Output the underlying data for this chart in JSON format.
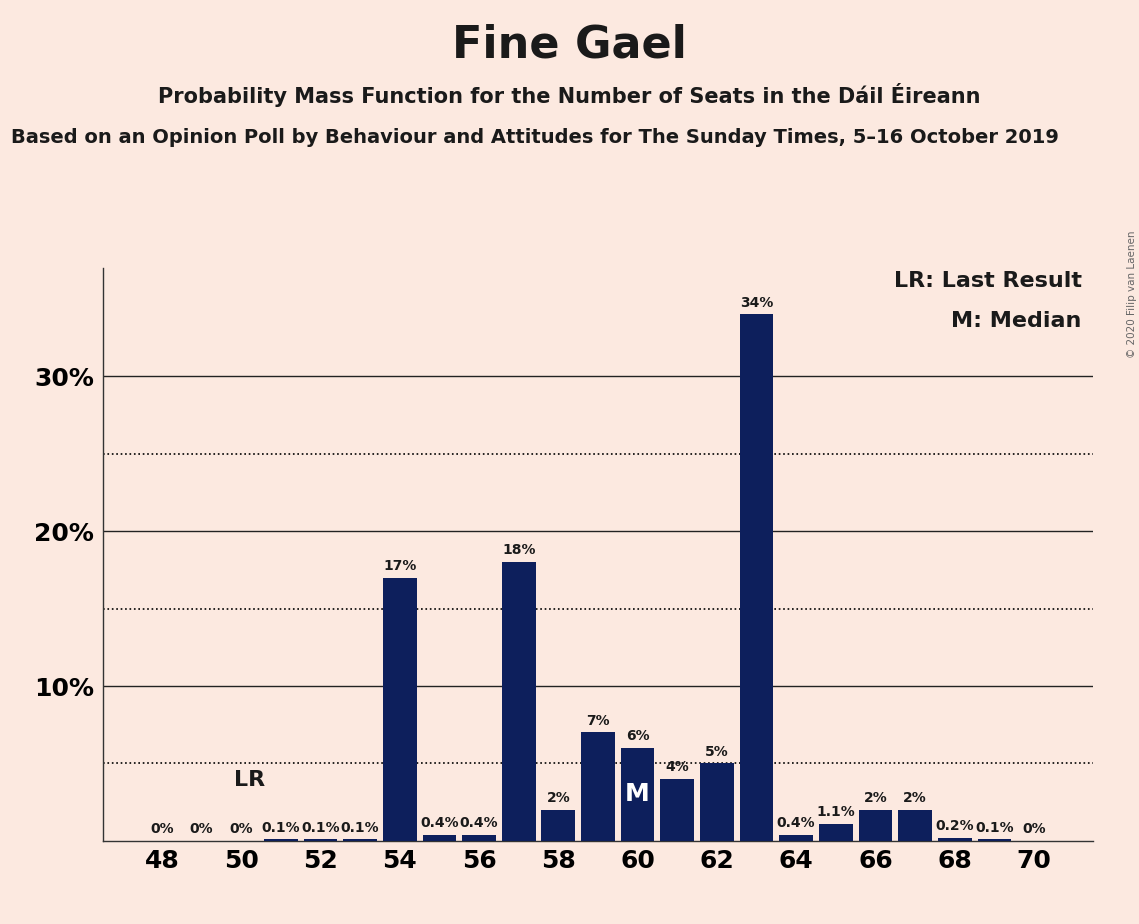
{
  "title": "Fine Gael",
  "subtitle": "Probability Mass Function for the Number of Seats in the Dáil Éireann",
  "subtitle2": "Based on an Opinion Poll by Behaviour and Attitudes for The Sunday Times, 5–16 October 2019",
  "copyright": "© 2020 Filip van Laenen",
  "background_color": "#fce9e0",
  "bar_color": "#0d1f5c",
  "seats": [
    48,
    49,
    50,
    51,
    52,
    53,
    54,
    55,
    56,
    57,
    58,
    59,
    60,
    61,
    62,
    63,
    64,
    65,
    66,
    67,
    68,
    69,
    70
  ],
  "values": [
    0.0,
    0.0,
    0.0,
    0.1,
    0.1,
    0.1,
    17.0,
    0.4,
    0.4,
    18.0,
    2.0,
    7.0,
    6.0,
    4.0,
    5.0,
    34.0,
    0.4,
    1.1,
    2.0,
    2.0,
    0.2,
    0.1,
    0.0
  ],
  "labels": [
    "0%",
    "0%",
    "0%",
    "0.1%",
    "0.1%",
    "0.1%",
    "17%",
    "0.4%",
    "0.4%",
    "18%",
    "2%",
    "7%",
    "6%",
    "4%",
    "5%",
    "34%",
    "0.4%",
    "1.1%",
    "2%",
    "2%",
    "0.2%",
    "0.1%",
    "0%"
  ],
  "lr_seat": 49,
  "median_seat": 60,
  "lr_line_value": 5.0,
  "xtick_seats": [
    48,
    50,
    52,
    54,
    56,
    58,
    60,
    62,
    64,
    66,
    68,
    70
  ],
  "dotted_lines": [
    5.0,
    15.0,
    25.0
  ],
  "solid_lines": [
    10.0,
    20.0,
    30.0
  ],
  "ylim": [
    0,
    37
  ],
  "xlim": [
    46.5,
    71.5
  ],
  "title_fontsize": 32,
  "subtitle_fontsize": 15,
  "subtitle2_fontsize": 14,
  "annot_fontsize": 10,
  "axis_tick_fontsize": 18,
  "legend_fontsize": 16,
  "lr_fontsize": 16,
  "median_fontsize": 18
}
